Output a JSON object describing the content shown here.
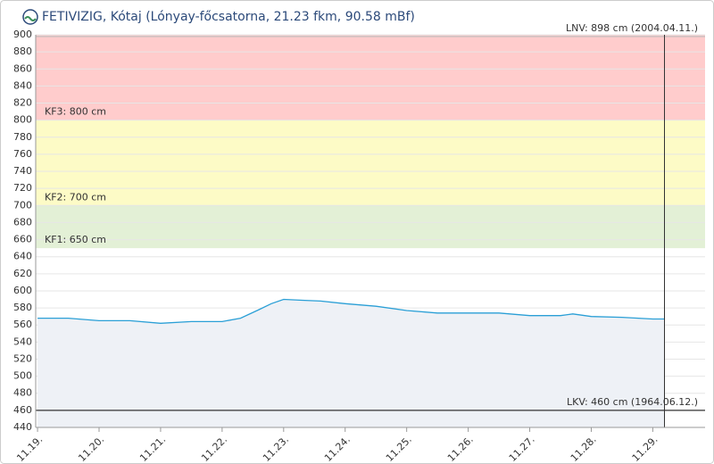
{
  "chart_data": {
    "type": "area-line",
    "title": "FETIVIZIG, Kótaj (Lónyay-főcsatorna, 21.23 fkm, 90.58 mBf)",
    "x": [
      0,
      0.5,
      1,
      1.5,
      2,
      2.5,
      3,
      3.3,
      3.6,
      3.8,
      4,
      4.3,
      4.6,
      5,
      5.5,
      6,
      6.5,
      7,
      7.5,
      8,
      8.5,
      8.7,
      9,
      9.5,
      10,
      10.19
    ],
    "values": [
      568,
      568,
      565,
      565,
      562,
      564,
      564,
      568,
      578,
      585,
      590,
      589,
      588,
      585,
      582,
      577,
      574,
      574,
      574,
      571,
      571,
      573,
      570,
      569,
      567,
      567
    ],
    "color": "#2a9fd6",
    "area_color": "#eef1f6",
    "xlim": [
      -0.03,
      10.85
    ],
    "xticks": [
      {
        "value": 0,
        "label": "11.19."
      },
      {
        "value": 1,
        "label": "11.20."
      },
      {
        "value": 2,
        "label": "11.21."
      },
      {
        "value": 3,
        "label": "11.22."
      },
      {
        "value": 4,
        "label": "11.23."
      },
      {
        "value": 5,
        "label": "11.24."
      },
      {
        "value": 6,
        "label": "11.25."
      },
      {
        "value": 7,
        "label": "11.26."
      },
      {
        "value": 8,
        "label": "11.27."
      },
      {
        "value": 9,
        "label": "11.28."
      },
      {
        "value": 10,
        "label": "11.29."
      }
    ],
    "ylim": [
      440,
      900
    ],
    "yticks": [
      440,
      460,
      480,
      500,
      520,
      540,
      560,
      580,
      600,
      620,
      640,
      660,
      680,
      700,
      720,
      740,
      760,
      780,
      800,
      820,
      840,
      860,
      880,
      900
    ],
    "bands": [
      {
        "value": 650,
        "label": "KF1: 650 cm",
        "color": "#e3f0d6"
      },
      {
        "value": 700,
        "label": "KF2: 700 cm",
        "color": "#fdfbc6"
      },
      {
        "value": 800,
        "label": "KF3: 800 cm",
        "color": "#ffcccc"
      }
    ],
    "lines": [
      {
        "value": 898,
        "label": "LNV: 898 cm (2004.04.11.)",
        "color": "#bbbbbb"
      },
      {
        "value": 460,
        "label": "LKV: 460 cm (1964.06.12.)",
        "color": "#333333"
      }
    ]
  }
}
